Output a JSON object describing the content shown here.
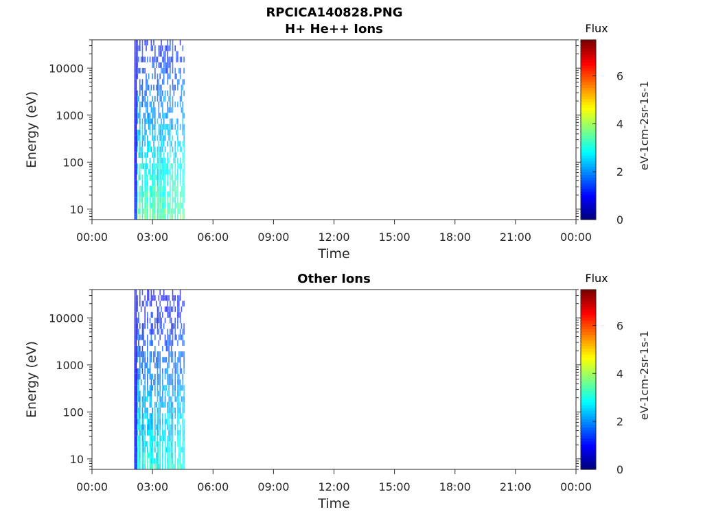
{
  "chart_data": {
    "type": "heatmap",
    "suptitle": "RPCICA140828.PNG",
    "panels": [
      {
        "title": "H+ He++ Ions",
        "xlabel": "Time",
        "ylabel": "Energy (eV)",
        "x_ticks": [
          "00:00",
          "03:00",
          "06:00",
          "09:00",
          "12:00",
          "15:00",
          "18:00",
          "21:00",
          "00:00"
        ],
        "xlim_hours": [
          0,
          24
        ],
        "y_scale": "log",
        "ylim": [
          6,
          40000
        ],
        "y_ticks": [
          10,
          100,
          1000,
          10000
        ],
        "y_tick_labels": [
          "10",
          "100",
          "1000",
          "10000"
        ],
        "colorbar": {
          "title": "Flux",
          "label": "eV-1cm-2sr-1s-1",
          "range": [
            0,
            7.5
          ],
          "ticks": [
            "0",
            "2",
            "4",
            "6"
          ],
          "colormap": "jet"
        },
        "data_coverage_hours": [
          2.1,
          4.6
        ],
        "low_energy_flux": 3.5,
        "high_energy_flux": 1.0
      },
      {
        "title": "Other Ions",
        "xlabel": "Time",
        "ylabel": "Energy (eV)",
        "x_ticks": [
          "00:00",
          "03:00",
          "06:00",
          "09:00",
          "12:00",
          "15:00",
          "18:00",
          "21:00",
          "00:00"
        ],
        "xlim_hours": [
          0,
          24
        ],
        "y_scale": "log",
        "ylim": [
          6,
          40000
        ],
        "y_ticks": [
          10,
          100,
          1000,
          10000
        ],
        "y_tick_labels": [
          "10",
          "100",
          "1000",
          "10000"
        ],
        "colorbar": {
          "title": "Flux",
          "label": "eV-1cm-2sr-1s-1",
          "range": [
            0,
            7.5
          ],
          "ticks": [
            "0",
            "2",
            "4",
            "6"
          ],
          "colormap": "jet"
        },
        "data_coverage_hours": [
          2.1,
          4.6
        ],
        "low_energy_flux": 3.0,
        "high_energy_flux": 0.8
      }
    ]
  }
}
